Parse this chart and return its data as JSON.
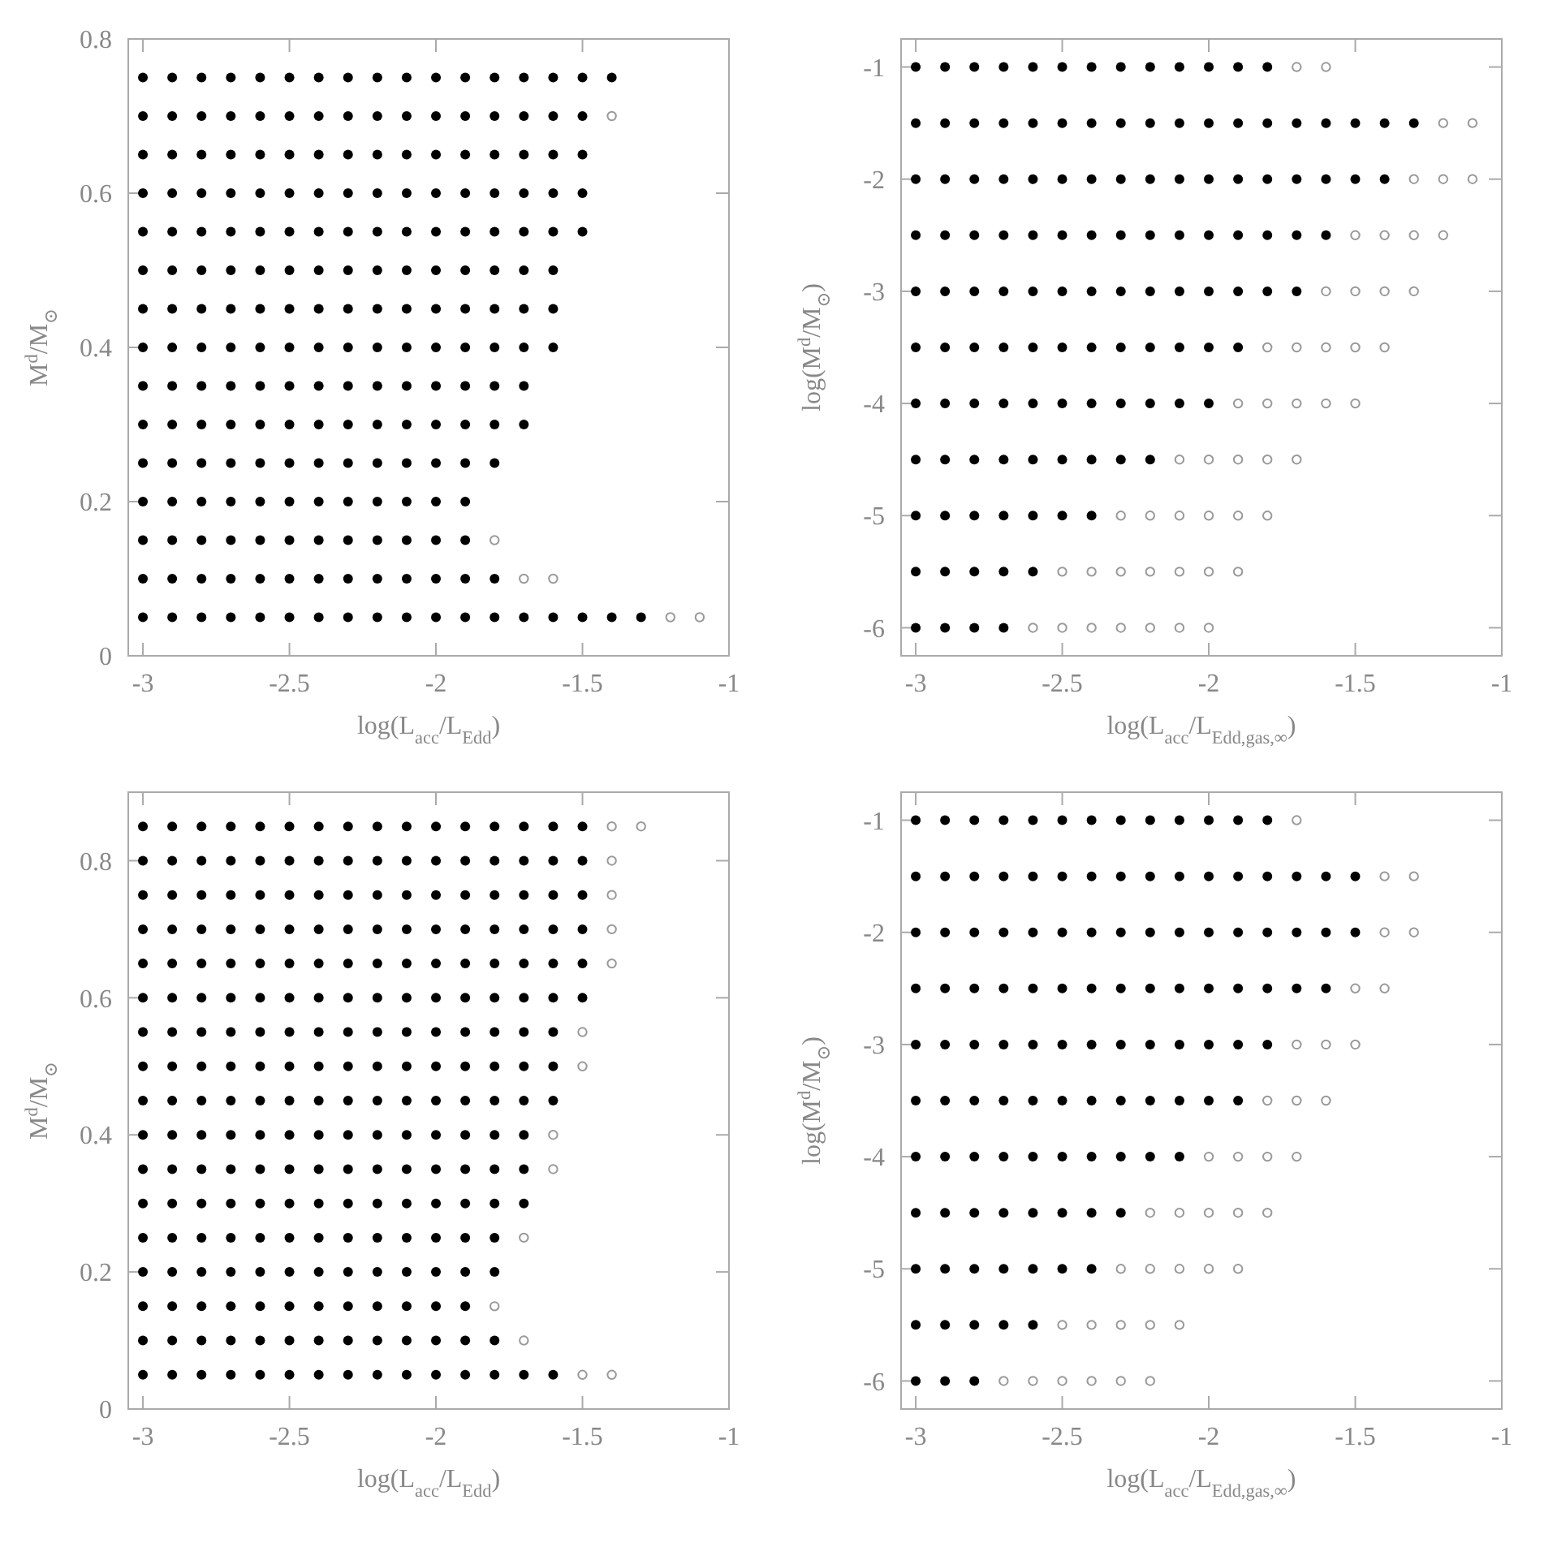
{
  "chart_data": [
    {
      "type": "scatter",
      "xlabel": "log(L$_{acc}$/L$_{Edd}$)",
      "ylabel": "M$^{d}$/M$_{⊙}$",
      "xlim": [
        -3.05,
        -1
      ],
      "ylim": [
        0,
        0.8
      ],
      "xticks": [
        -3,
        -2.5,
        -2,
        -1.5,
        -1
      ],
      "yticks": [
        0,
        0.2,
        0.4,
        0.6,
        0.8
      ],
      "series": [
        {
          "color": "#000000",
          "marker": "circle",
          "x": [
            -3,
            -2.9,
            -2.8,
            -2.7,
            -2.6,
            -2.5,
            -2.4,
            -2.3,
            -2.2,
            -2.1,
            -2,
            -1.9,
            -1.8,
            -1.7,
            -1.6,
            -1.5,
            -1.4,
            -3,
            -2.9,
            -2.8,
            -2.7,
            -2.6,
            -2.5,
            -2.4,
            -2.3,
            -2.2,
            -2.1,
            -2,
            -1.9,
            -1.8,
            -1.7,
            -1.6,
            -1.5,
            -3,
            -2.9,
            -2.8,
            -2.7,
            -2.6,
            -2.5,
            -2.4,
            -2.3,
            -2.2,
            -2.1,
            -2,
            -1.9,
            -1.8,
            -1.7,
            -1.6,
            -1.5,
            -3,
            -2.9,
            -2.8,
            -2.7,
            -2.6,
            -2.5,
            -2.4,
            -2.3,
            -2.2,
            -2.1,
            -2,
            -1.9,
            -1.8,
            -1.7,
            -1.6,
            -1.5,
            -3,
            -2.9,
            -2.8,
            -2.7,
            -2.6,
            -2.5,
            -2.4,
            -2.3,
            -2.2,
            -2.1,
            -2,
            -1.9,
            -1.8,
            -1.7,
            -1.6,
            -1.5,
            -3,
            -2.9,
            -2.8,
            -2.7,
            -2.6,
            -2.5,
            -2.4,
            -2.3,
            -2.2,
            -2.1,
            -2,
            -1.9,
            -1.8,
            -1.7,
            -1.6,
            -3,
            -2.9,
            -2.8,
            -2.7,
            -2.6,
            -2.5,
            -2.4,
            -2.3,
            -2.2,
            -2.1,
            -2,
            -1.9,
            -1.8,
            -1.7,
            -1.6,
            -3,
            -2.9,
            -2.8,
            -2.7,
            -2.6,
            -2.5,
            -2.4,
            -2.3,
            -2.2,
            -2.1,
            -2,
            -1.9,
            -1.8,
            -1.7,
            -1.6,
            -3,
            -2.9,
            -2.8,
            -2.7,
            -2.6,
            -2.5,
            -2.4,
            -2.3,
            -2.2,
            -2.1,
            -2,
            -1.9,
            -1.8,
            -1.7,
            -3,
            -2.9,
            -2.8,
            -2.7,
            -2.6,
            -2.5,
            -2.4,
            -2.3,
            -2.2,
            -2.1,
            -2,
            -1.9,
            -1.8,
            -1.7,
            -3,
            -2.9,
            -2.8,
            -2.7,
            -2.6,
            -2.5,
            -2.4,
            -2.3,
            -2.2,
            -2.1,
            -2,
            -1.9,
            -1.8,
            -3,
            -2.9,
            -2.8,
            -2.7,
            -2.6,
            -2.5,
            -2.4,
            -2.3,
            -2.2,
            -2.1,
            -2,
            -1.9,
            -3,
            -2.9,
            -2.8,
            -2.7,
            -2.6,
            -2.5,
            -2.4,
            -2.3,
            -2.2,
            -2.1,
            -2,
            -1.9,
            -3,
            -2.9,
            -2.8,
            -2.7,
            -2.6,
            -2.5,
            -2.4,
            -2.3,
            -2.2,
            -2.1,
            -2,
            -1.9,
            -1.8,
            -3,
            -2.9,
            -2.8,
            -2.7,
            -2.6,
            -2.5,
            -2.4,
            -2.3,
            -2.2,
            -2.1,
            -2,
            -1.9,
            -1.8,
            -1.7,
            -1.6,
            -1.5,
            -1.4,
            -1.3
          ],
          "values": [
            0.75,
            0.75,
            0.75,
            0.75,
            0.75,
            0.75,
            0.75,
            0.75,
            0.75,
            0.75,
            0.75,
            0.75,
            0.75,
            0.75,
            0.75,
            0.75,
            0.75,
            0.7,
            0.7,
            0.7,
            0.7,
            0.7,
            0.7,
            0.7,
            0.7,
            0.7,
            0.7,
            0.7,
            0.7,
            0.7,
            0.7,
            0.7,
            0.7,
            0.65,
            0.65,
            0.65,
            0.65,
            0.65,
            0.65,
            0.65,
            0.65,
            0.65,
            0.65,
            0.65,
            0.65,
            0.65,
            0.65,
            0.65,
            0.65,
            0.6,
            0.6,
            0.6,
            0.6,
            0.6,
            0.6,
            0.6,
            0.6,
            0.6,
            0.6,
            0.6,
            0.6,
            0.6,
            0.6,
            0.6,
            0.6,
            0.55,
            0.55,
            0.55,
            0.55,
            0.55,
            0.55,
            0.55,
            0.55,
            0.55,
            0.55,
            0.55,
            0.55,
            0.55,
            0.55,
            0.55,
            0.55,
            0.5,
            0.5,
            0.5,
            0.5,
            0.5,
            0.5,
            0.5,
            0.5,
            0.5,
            0.5,
            0.5,
            0.5,
            0.5,
            0.5,
            0.5,
            0.45,
            0.45,
            0.45,
            0.45,
            0.45,
            0.45,
            0.45,
            0.45,
            0.45,
            0.45,
            0.45,
            0.45,
            0.45,
            0.45,
            0.45,
            0.4,
            0.4,
            0.4,
            0.4,
            0.4,
            0.4,
            0.4,
            0.4,
            0.4,
            0.4,
            0.4,
            0.4,
            0.4,
            0.4,
            0.4,
            0.35,
            0.35,
            0.35,
            0.35,
            0.35,
            0.35,
            0.35,
            0.35,
            0.35,
            0.35,
            0.35,
            0.35,
            0.35,
            0.35,
            0.3,
            0.3,
            0.3,
            0.3,
            0.3,
            0.3,
            0.3,
            0.3,
            0.3,
            0.3,
            0.3,
            0.3,
            0.3,
            0.3,
            0.25,
            0.25,
            0.25,
            0.25,
            0.25,
            0.25,
            0.25,
            0.25,
            0.25,
            0.25,
            0.25,
            0.25,
            0.25,
            0.2,
            0.2,
            0.2,
            0.2,
            0.2,
            0.2,
            0.2,
            0.2,
            0.2,
            0.2,
            0.2,
            0.2,
            0.15,
            0.15,
            0.15,
            0.15,
            0.15,
            0.15,
            0.15,
            0.15,
            0.15,
            0.15,
            0.15,
            0.15,
            0.1,
            0.1,
            0.1,
            0.1,
            0.1,
            0.1,
            0.1,
            0.1,
            0.1,
            0.1,
            0.1,
            0.1,
            0.1,
            0.05,
            0.05,
            0.05,
            0.05,
            0.05,
            0.05,
            0.05,
            0.05,
            0.05,
            0.05,
            0.05,
            0.05,
            0.05,
            0.05,
            0.05,
            0.05,
            0.05,
            0.05
          ]
        },
        {
          "color": "#999999",
          "marker": "circle",
          "x": [
            -1.4,
            -1.8,
            -1.7,
            -1.6,
            -1.2,
            -1.1
          ],
          "values": [
            0.7,
            0.15,
            0.1,
            0.1,
            0.05,
            0.05
          ]
        }
      ]
    },
    {
      "type": "scatter",
      "xlabel": "log(L$_{acc}$/L$_{Edd,gas,∞}$)",
      "ylabel": "log(M$^{d}$/M$_{⊙}$)",
      "xlim": [
        -3.05,
        -1
      ],
      "ylim": [
        -6.25,
        -0.75
      ],
      "xticks": [
        -3,
        -2.5,
        -2,
        -1.5,
        -1
      ],
      "yticks": [
        -6,
        -5,
        -4,
        -3,
        -2,
        -1
      ],
      "series": [
        {
          "color": "#000000",
          "marker": "circle",
          "x": [
            -3,
            -2.9,
            -2.8,
            -2.7,
            -2.6,
            -2.5,
            -2.4,
            -2.3,
            -2.2,
            -2.1,
            -2,
            -1.9,
            -1.8,
            -3,
            -2.9,
            -2.8,
            -2.7,
            -2.6,
            -2.5,
            -2.4,
            -2.3,
            -2.2,
            -2.1,
            -2,
            -1.9,
            -1.8,
            -1.7,
            -1.6,
            -1.5,
            -1.4,
            -1.3,
            -3,
            -2.9,
            -2.8,
            -2.7,
            -2.6,
            -2.5,
            -2.4,
            -2.3,
            -2.2,
            -2.1,
            -2,
            -1.9,
            -1.8,
            -1.7,
            -1.6,
            -1.5,
            -1.4,
            -3,
            -2.9,
            -2.8,
            -2.7,
            -2.6,
            -2.5,
            -2.4,
            -2.3,
            -2.2,
            -2.1,
            -2,
            -1.9,
            -1.8,
            -1.7,
            -1.6,
            -3,
            -2.9,
            -2.8,
            -2.7,
            -2.6,
            -2.5,
            -2.4,
            -2.3,
            -2.2,
            -2.1,
            -2,
            -1.9,
            -1.8,
            -1.7,
            -3,
            -2.9,
            -2.8,
            -2.7,
            -2.6,
            -2.5,
            -2.4,
            -2.3,
            -2.2,
            -2.1,
            -2,
            -1.9,
            -3,
            -2.9,
            -2.8,
            -2.7,
            -2.6,
            -2.5,
            -2.4,
            -2.3,
            -2.2,
            -2.1,
            -2,
            -3,
            -2.9,
            -2.8,
            -2.7,
            -2.6,
            -2.5,
            -2.4,
            -2.3,
            -2.2,
            -3,
            -2.9,
            -2.8,
            -2.7,
            -2.6,
            -2.5,
            -2.4,
            -3,
            -2.9,
            -2.8,
            -2.7,
            -2.6,
            -3,
            -2.9,
            -2.8,
            -2.7
          ],
          "values": [
            -1,
            -1,
            -1,
            -1,
            -1,
            -1,
            -1,
            -1,
            -1,
            -1,
            -1,
            -1,
            -1,
            -1.5,
            -1.5,
            -1.5,
            -1.5,
            -1.5,
            -1.5,
            -1.5,
            -1.5,
            -1.5,
            -1.5,
            -1.5,
            -1.5,
            -1.5,
            -1.5,
            -1.5,
            -1.5,
            -1.5,
            -1.5,
            -2,
            -2,
            -2,
            -2,
            -2,
            -2,
            -2,
            -2,
            -2,
            -2,
            -2,
            -2,
            -2,
            -2,
            -2,
            -2,
            -2,
            -2.5,
            -2.5,
            -2.5,
            -2.5,
            -2.5,
            -2.5,
            -2.5,
            -2.5,
            -2.5,
            -2.5,
            -2.5,
            -2.5,
            -2.5,
            -2.5,
            -2.5,
            -3,
            -3,
            -3,
            -3,
            -3,
            -3,
            -3,
            -3,
            -3,
            -3,
            -3,
            -3,
            -3,
            -3,
            -3.5,
            -3.5,
            -3.5,
            -3.5,
            -3.5,
            -3.5,
            -3.5,
            -3.5,
            -3.5,
            -3.5,
            -3.5,
            -3.5,
            -4,
            -4,
            -4,
            -4,
            -4,
            -4,
            -4,
            -4,
            -4,
            -4,
            -4,
            -4.5,
            -4.5,
            -4.5,
            -4.5,
            -4.5,
            -4.5,
            -4.5,
            -4.5,
            -4.5,
            -5,
            -5,
            -5,
            -5,
            -5,
            -5,
            -5,
            -5.5,
            -5.5,
            -5.5,
            -5.5,
            -5.5,
            -6,
            -6,
            -6,
            -6
          ]
        },
        {
          "color": "#999999",
          "marker": "circle",
          "x": [
            -1.7,
            -1.6,
            -1.2,
            -1.1,
            -1.3,
            -1.2,
            -1.1,
            -1.5,
            -1.4,
            -1.3,
            -1.2,
            -1.6,
            -1.5,
            -1.4,
            -1.3,
            -1.8,
            -1.7,
            -1.6,
            -1.5,
            -1.4,
            -1.9,
            -1.8,
            -1.7,
            -1.6,
            -1.5,
            -2.1,
            -2,
            -1.9,
            -1.8,
            -1.7,
            -2.3,
            -2.2,
            -2.1,
            -2,
            -1.9,
            -1.8,
            -2.5,
            -2.4,
            -2.3,
            -2.2,
            -2.1,
            -2,
            -1.9,
            -2.6,
            -2.5,
            -2.4,
            -2.3,
            -2.2,
            -2.1,
            -2
          ],
          "values": [
            -1,
            -1,
            -1.5,
            -1.5,
            -2,
            -2,
            -2,
            -2.5,
            -2.5,
            -2.5,
            -2.5,
            -3,
            -3,
            -3,
            -3,
            -3.5,
            -3.5,
            -3.5,
            -3.5,
            -3.5,
            -4,
            -4,
            -4,
            -4,
            -4,
            -4.5,
            -4.5,
            -4.5,
            -4.5,
            -4.5,
            -5,
            -5,
            -5,
            -5,
            -5,
            -5,
            -5.5,
            -5.5,
            -5.5,
            -5.5,
            -5.5,
            -5.5,
            -5.5,
            -6,
            -6,
            -6,
            -6,
            -6,
            -6,
            -6
          ]
        }
      ]
    },
    {
      "type": "scatter",
      "xlabel": "log(L$_{acc}$/L$_{Edd}$)",
      "ylabel": "M$^{d}$/M$_{⊙}$",
      "xlim": [
        -3.05,
        -1
      ],
      "ylim": [
        0,
        0.9
      ],
      "xticks": [
        -3,
        -2.5,
        -2,
        -1.5,
        -1
      ],
      "yticks": [
        0,
        0.2,
        0.4,
        0.6,
        0.8
      ],
      "series": [
        {
          "color": "#000000",
          "marker": "circle",
          "x": [
            -3,
            -2.9,
            -2.8,
            -2.7,
            -2.6,
            -2.5,
            -2.4,
            -2.3,
            -2.2,
            -2.1,
            -2,
            -1.9,
            -1.8,
            -1.7,
            -1.6,
            -1.5,
            -3,
            -2.9,
            -2.8,
            -2.7,
            -2.6,
            -2.5,
            -2.4,
            -2.3,
            -2.2,
            -2.1,
            -2,
            -1.9,
            -1.8,
            -1.7,
            -1.6,
            -1.5,
            -3,
            -2.9,
            -2.8,
            -2.7,
            -2.6,
            -2.5,
            -2.4,
            -2.3,
            -2.2,
            -2.1,
            -2,
            -1.9,
            -1.8,
            -1.7,
            -1.6,
            -1.5,
            -3,
            -2.9,
            -2.8,
            -2.7,
            -2.6,
            -2.5,
            -2.4,
            -2.3,
            -2.2,
            -2.1,
            -2,
            -1.9,
            -1.8,
            -1.7,
            -1.6,
            -1.5,
            -3,
            -2.9,
            -2.8,
            -2.7,
            -2.6,
            -2.5,
            -2.4,
            -2.3,
            -2.2,
            -2.1,
            -2,
            -1.9,
            -1.8,
            -1.7,
            -1.6,
            -1.5,
            -3,
            -2.9,
            -2.8,
            -2.7,
            -2.6,
            -2.5,
            -2.4,
            -2.3,
            -2.2,
            -2.1,
            -2,
            -1.9,
            -1.8,
            -1.7,
            -1.6,
            -1.5,
            -3,
            -2.9,
            -2.8,
            -2.7,
            -2.6,
            -2.5,
            -2.4,
            -2.3,
            -2.2,
            -2.1,
            -2,
            -1.9,
            -1.8,
            -1.7,
            -1.6,
            -3,
            -2.9,
            -2.8,
            -2.7,
            -2.6,
            -2.5,
            -2.4,
            -2.3,
            -2.2,
            -2.1,
            -2,
            -1.9,
            -1.8,
            -1.7,
            -1.6,
            -3,
            -2.9,
            -2.8,
            -2.7,
            -2.6,
            -2.5,
            -2.4,
            -2.3,
            -2.2,
            -2.1,
            -2,
            -1.9,
            -1.8,
            -1.7,
            -1.6,
            -3,
            -2.9,
            -2.8,
            -2.7,
            -2.6,
            -2.5,
            -2.4,
            -2.3,
            -2.2,
            -2.1,
            -2,
            -1.9,
            -1.8,
            -1.7,
            -3,
            -2.9,
            -2.8,
            -2.7,
            -2.6,
            -2.5,
            -2.4,
            -2.3,
            -2.2,
            -2.1,
            -2,
            -1.9,
            -1.8,
            -1.7,
            -3,
            -2.9,
            -2.8,
            -2.7,
            -2.6,
            -2.5,
            -2.4,
            -2.3,
            -2.2,
            -2.1,
            -2,
            -1.9,
            -1.8,
            -1.7,
            -3,
            -2.9,
            -2.8,
            -2.7,
            -2.6,
            -2.5,
            -2.4,
            -2.3,
            -2.2,
            -2.1,
            -2,
            -1.9,
            -1.8,
            -3,
            -2.9,
            -2.8,
            -2.7,
            -2.6,
            -2.5,
            -2.4,
            -2.3,
            -2.2,
            -2.1,
            -2,
            -1.9,
            -1.8,
            -3,
            -2.9,
            -2.8,
            -2.7,
            -2.6,
            -2.5,
            -2.4,
            -2.3,
            -2.2,
            -2.1,
            -2,
            -1.9,
            -3,
            -2.9,
            -2.8,
            -2.7,
            -2.6,
            -2.5,
            -2.4,
            -2.3,
            -2.2,
            -2.1,
            -2,
            -1.9,
            -1.8,
            -3,
            -2.9,
            -2.8,
            -2.7,
            -2.6,
            -2.5,
            -2.4,
            -2.3,
            -2.2,
            -2.1,
            -2,
            -1.9,
            -1.8,
            -1.7,
            -1.6
          ],
          "values": [
            0.85,
            0.85,
            0.85,
            0.85,
            0.85,
            0.85,
            0.85,
            0.85,
            0.85,
            0.85,
            0.85,
            0.85,
            0.85,
            0.85,
            0.85,
            0.85,
            0.8,
            0.8,
            0.8,
            0.8,
            0.8,
            0.8,
            0.8,
            0.8,
            0.8,
            0.8,
            0.8,
            0.8,
            0.8,
            0.8,
            0.8,
            0.8,
            0.75,
            0.75,
            0.75,
            0.75,
            0.75,
            0.75,
            0.75,
            0.75,
            0.75,
            0.75,
            0.75,
            0.75,
            0.75,
            0.75,
            0.75,
            0.75,
            0.7,
            0.7,
            0.7,
            0.7,
            0.7,
            0.7,
            0.7,
            0.7,
            0.7,
            0.7,
            0.7,
            0.7,
            0.7,
            0.7,
            0.7,
            0.7,
            0.65,
            0.65,
            0.65,
            0.65,
            0.65,
            0.65,
            0.65,
            0.65,
            0.65,
            0.65,
            0.65,
            0.65,
            0.65,
            0.65,
            0.65,
            0.65,
            0.6,
            0.6,
            0.6,
            0.6,
            0.6,
            0.6,
            0.6,
            0.6,
            0.6,
            0.6,
            0.6,
            0.6,
            0.6,
            0.6,
            0.6,
            0.6,
            0.55,
            0.55,
            0.55,
            0.55,
            0.55,
            0.55,
            0.55,
            0.55,
            0.55,
            0.55,
            0.55,
            0.55,
            0.55,
            0.55,
            0.55,
            0.5,
            0.5,
            0.5,
            0.5,
            0.5,
            0.5,
            0.5,
            0.5,
            0.5,
            0.5,
            0.5,
            0.5,
            0.5,
            0.5,
            0.5,
            0.45,
            0.45,
            0.45,
            0.45,
            0.45,
            0.45,
            0.45,
            0.45,
            0.45,
            0.45,
            0.45,
            0.45,
            0.45,
            0.45,
            0.45,
            0.4,
            0.4,
            0.4,
            0.4,
            0.4,
            0.4,
            0.4,
            0.4,
            0.4,
            0.4,
            0.4,
            0.4,
            0.4,
            0.4,
            0.35,
            0.35,
            0.35,
            0.35,
            0.35,
            0.35,
            0.35,
            0.35,
            0.35,
            0.35,
            0.35,
            0.35,
            0.35,
            0.35,
            0.3,
            0.3,
            0.3,
            0.3,
            0.3,
            0.3,
            0.3,
            0.3,
            0.3,
            0.3,
            0.3,
            0.3,
            0.3,
            0.3,
            0.25,
            0.25,
            0.25,
            0.25,
            0.25,
            0.25,
            0.25,
            0.25,
            0.25,
            0.25,
            0.25,
            0.25,
            0.25,
            0.2,
            0.2,
            0.2,
            0.2,
            0.2,
            0.2,
            0.2,
            0.2,
            0.2,
            0.2,
            0.2,
            0.2,
            0.2,
            0.15,
            0.15,
            0.15,
            0.15,
            0.15,
            0.15,
            0.15,
            0.15,
            0.15,
            0.15,
            0.15,
            0.15,
            0.1,
            0.1,
            0.1,
            0.1,
            0.1,
            0.1,
            0.1,
            0.1,
            0.1,
            0.1,
            0.1,
            0.1,
            0.1,
            0.05,
            0.05,
            0.05,
            0.05,
            0.05,
            0.05,
            0.05,
            0.05,
            0.05,
            0.05,
            0.05,
            0.05,
            0.05,
            0.05,
            0.05
          ]
        },
        {
          "color": "#999999",
          "marker": "circle",
          "x": [
            -1.4,
            -1.3,
            -1.4,
            -1.4,
            -1.4,
            -1.4,
            -1.5,
            -1.5,
            -1.6,
            -1.6,
            -1.7,
            -1.8,
            -1.7,
            -1.5,
            -1.4
          ],
          "values": [
            0.85,
            0.85,
            0.8,
            0.75,
            0.7,
            0.65,
            0.55,
            0.5,
            0.4,
            0.35,
            0.25,
            0.15,
            0.1,
            0.05,
            0.05
          ]
        }
      ]
    },
    {
      "type": "scatter",
      "xlabel": "log(L$_{acc}$/L$_{Edd,gas,∞}$)",
      "ylabel": "log(M$^{d}$/M$_{⊙}$)",
      "xlim": [
        -3.05,
        -1
      ],
      "ylim": [
        -6.25,
        -0.75
      ],
      "xticks": [
        -3,
        -2.5,
        -2,
        -1.5,
        -1
      ],
      "yticks": [
        -6,
        -5,
        -4,
        -3,
        -2,
        -1
      ],
      "series": [
        {
          "color": "#000000",
          "marker": "circle",
          "x": [
            -3,
            -2.9,
            -2.8,
            -2.7,
            -2.6,
            -2.5,
            -2.4,
            -2.3,
            -2.2,
            -2.1,
            -2,
            -1.9,
            -1.8,
            -3,
            -2.9,
            -2.8,
            -2.7,
            -2.6,
            -2.5,
            -2.4,
            -2.3,
            -2.2,
            -2.1,
            -2,
            -1.9,
            -1.8,
            -1.7,
            -1.6,
            -1.5,
            -3,
            -2.9,
            -2.8,
            -2.7,
            -2.6,
            -2.5,
            -2.4,
            -2.3,
            -2.2,
            -2.1,
            -2,
            -1.9,
            -1.8,
            -1.7,
            -1.6,
            -1.5,
            -3,
            -2.9,
            -2.8,
            -2.7,
            -2.6,
            -2.5,
            -2.4,
            -2.3,
            -2.2,
            -2.1,
            -2,
            -1.9,
            -1.8,
            -1.7,
            -1.6,
            -3,
            -2.9,
            -2.8,
            -2.7,
            -2.6,
            -2.5,
            -2.4,
            -2.3,
            -2.2,
            -2.1,
            -2,
            -1.9,
            -1.8,
            -3,
            -2.9,
            -2.8,
            -2.7,
            -2.6,
            -2.5,
            -2.4,
            -2.3,
            -2.2,
            -2.1,
            -2,
            -1.9,
            -3,
            -2.9,
            -2.8,
            -2.7,
            -2.6,
            -2.5,
            -2.4,
            -2.3,
            -2.2,
            -2.1,
            -3,
            -2.9,
            -2.8,
            -2.7,
            -2.6,
            -2.5,
            -2.4,
            -2.3,
            -3,
            -2.9,
            -2.8,
            -2.7,
            -2.6,
            -2.5,
            -2.4,
            -3,
            -2.9,
            -2.8,
            -2.7,
            -2.6,
            -3,
            -2.9,
            -2.8
          ],
          "values": [
            -1,
            -1,
            -1,
            -1,
            -1,
            -1,
            -1,
            -1,
            -1,
            -1,
            -1,
            -1,
            -1,
            -1.5,
            -1.5,
            -1.5,
            -1.5,
            -1.5,
            -1.5,
            -1.5,
            -1.5,
            -1.5,
            -1.5,
            -1.5,
            -1.5,
            -1.5,
            -1.5,
            -1.5,
            -1.5,
            -2,
            -2,
            -2,
            -2,
            -2,
            -2,
            -2,
            -2,
            -2,
            -2,
            -2,
            -2,
            -2,
            -2,
            -2,
            -2,
            -2.5,
            -2.5,
            -2.5,
            -2.5,
            -2.5,
            -2.5,
            -2.5,
            -2.5,
            -2.5,
            -2.5,
            -2.5,
            -2.5,
            -2.5,
            -2.5,
            -2.5,
            -3,
            -3,
            -3,
            -3,
            -3,
            -3,
            -3,
            -3,
            -3,
            -3,
            -3,
            -3,
            -3,
            -3.5,
            -3.5,
            -3.5,
            -3.5,
            -3.5,
            -3.5,
            -3.5,
            -3.5,
            -3.5,
            -3.5,
            -3.5,
            -3.5,
            -4,
            -4,
            -4,
            -4,
            -4,
            -4,
            -4,
            -4,
            -4,
            -4,
            -4.5,
            -4.5,
            -4.5,
            -4.5,
            -4.5,
            -4.5,
            -4.5,
            -4.5,
            -5,
            -5,
            -5,
            -5,
            -5,
            -5,
            -5,
            -5.5,
            -5.5,
            -5.5,
            -5.5,
            -5.5,
            -6,
            -6,
            -6
          ]
        },
        {
          "color": "#999999",
          "marker": "circle",
          "x": [
            -1.7,
            -1.4,
            -1.3,
            -1.4,
            -1.3,
            -1.5,
            -1.4,
            -1.7,
            -1.6,
            -1.5,
            -1.8,
            -1.7,
            -1.6,
            -2,
            -1.9,
            -1.8,
            -1.7,
            -2.2,
            -2.1,
            -2,
            -1.9,
            -1.8,
            -2.3,
            -2.2,
            -2.1,
            -2,
            -1.9,
            -2.5,
            -2.4,
            -2.3,
            -2.2,
            -2.1,
            -2.7,
            -2.6,
            -2.5,
            -2.4,
            -2.3,
            -2.2
          ],
          "values": [
            -1,
            -1.5,
            -1.5,
            -2,
            -2,
            -2.5,
            -2.5,
            -3,
            -3,
            -3,
            -3.5,
            -3.5,
            -3.5,
            -4,
            -4,
            -4,
            -4,
            -4.5,
            -4.5,
            -4.5,
            -4.5,
            -4.5,
            -5,
            -5,
            -5,
            -5,
            -5,
            -5.5,
            -5.5,
            -5.5,
            -5.5,
            -5.5,
            -6,
            -6,
            -6,
            -6,
            -6,
            -6
          ]
        }
      ]
    }
  ]
}
